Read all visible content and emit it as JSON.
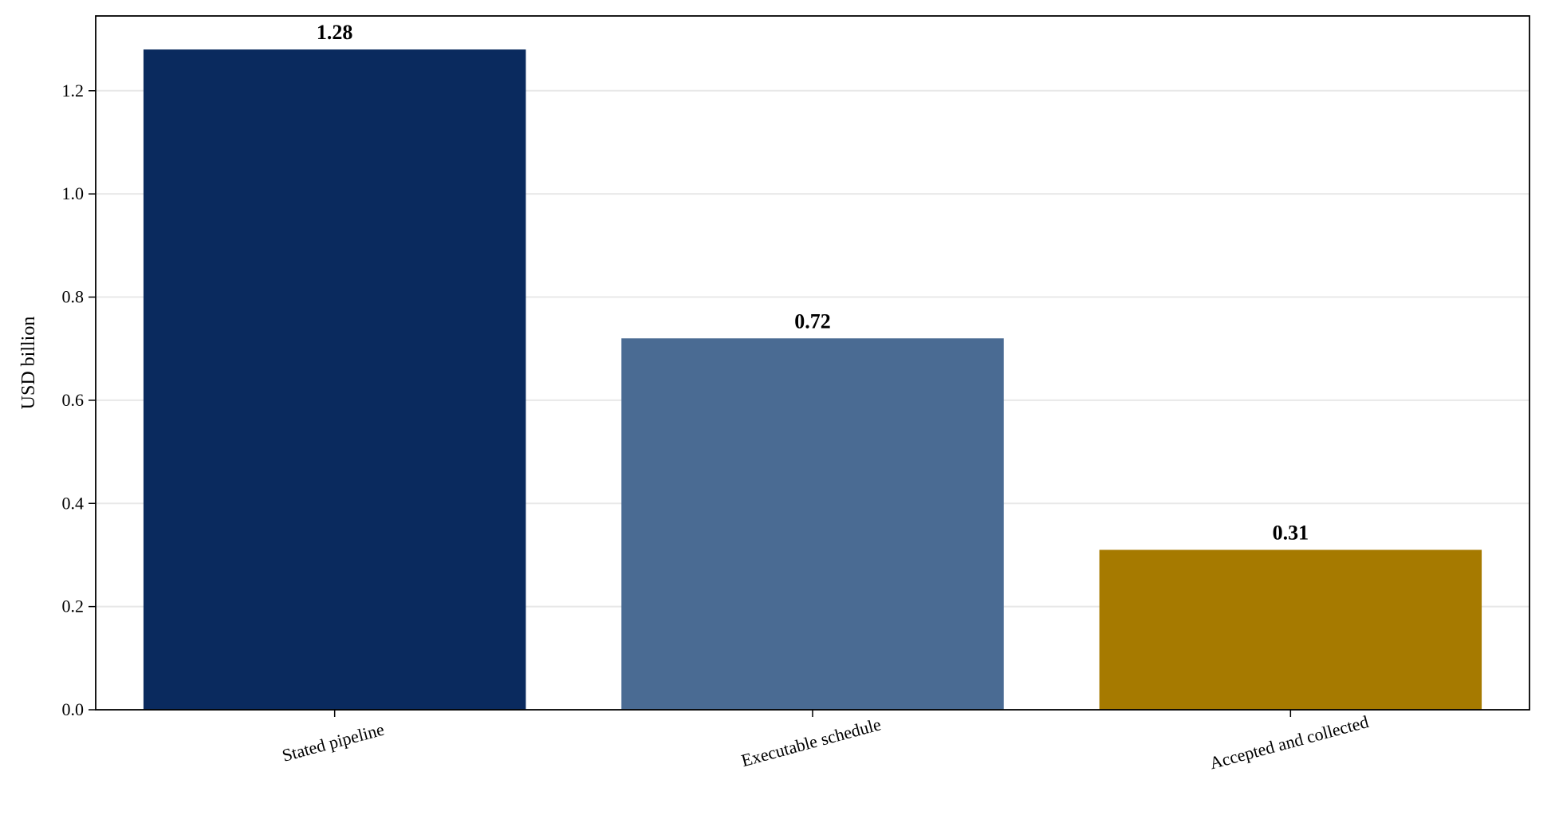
{
  "chart_data": {
    "type": "bar",
    "categories": [
      "Stated pipeline",
      "Executable schedule",
      "Accepted and collected"
    ],
    "values": [
      1.28,
      0.72,
      0.31
    ],
    "value_labels": [
      "1.28",
      "0.72",
      "0.31"
    ],
    "colors": [
      "#0a2a5e",
      "#4a6b93",
      "#a67a00"
    ],
    "xlabel": "",
    "ylabel": "USD billion",
    "ylim": [
      0,
      1.345
    ],
    "yticks": [
      0.0,
      0.2,
      0.4,
      0.6,
      0.8,
      1.0,
      1.2
    ],
    "ytick_labels": [
      "0.0",
      "0.2",
      "0.4",
      "0.6",
      "0.8",
      "1.0",
      "1.2"
    ],
    "grid": "horizontal",
    "grid_color": "#e8e8e8",
    "axis_color": "#000000"
  }
}
